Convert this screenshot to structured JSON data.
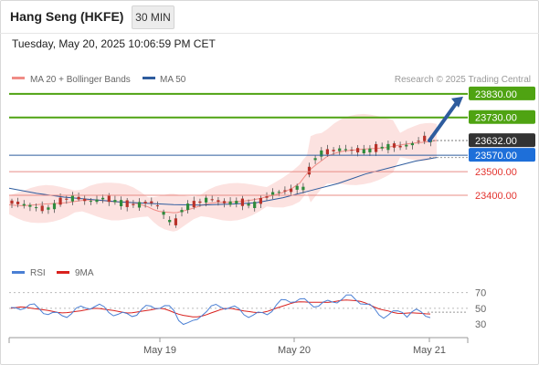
{
  "header": {
    "title": "Hang Seng (HKFE)",
    "timeframe_button": "30 MIN"
  },
  "timestamp": "Tuesday, May 20, 2025 10:06:59 PM CET",
  "legend": {
    "items": [
      {
        "label": "MA 20 + Bollinger Bands",
        "color": "#f08c86"
      },
      {
        "label": "MA 50",
        "color": "#2e5c9e"
      }
    ],
    "source": "Research © 2025 Trading Central"
  },
  "chart_data": {
    "type": "candlestick",
    "price_axis": {
      "ylim": [
        23125,
        23880
      ]
    },
    "levels": [
      {
        "value": 23830,
        "label": "23830.00",
        "kind": "resistance",
        "color": "#4fa312"
      },
      {
        "value": 23730,
        "label": "23730.00",
        "kind": "resistance",
        "color": "#4fa312"
      },
      {
        "value": 23632,
        "label": "23632.00",
        "kind": "last-price",
        "color": "#333333"
      },
      {
        "value": 23570,
        "label": "23570.00",
        "kind": "pivot",
        "color": "#1e6fd9"
      },
      {
        "value": 23500,
        "label": "23500.00",
        "kind": "support",
        "color": "#e3342f"
      },
      {
        "value": 23400,
        "label": "23400.00",
        "kind": "support",
        "color": "#e3342f"
      }
    ],
    "x_ticks": [
      "May 19",
      "May 20",
      "May 21"
    ],
    "rsi": {
      "legend": [
        {
          "label": "RSI",
          "color": "#4a7fd4"
        },
        {
          "label": "9MA",
          "color": "#d9211e"
        }
      ],
      "ylim": [
        15,
        80
      ],
      "levels": [
        70,
        50,
        30
      ],
      "level_labels": [
        "70",
        "50",
        "30"
      ]
    }
  }
}
